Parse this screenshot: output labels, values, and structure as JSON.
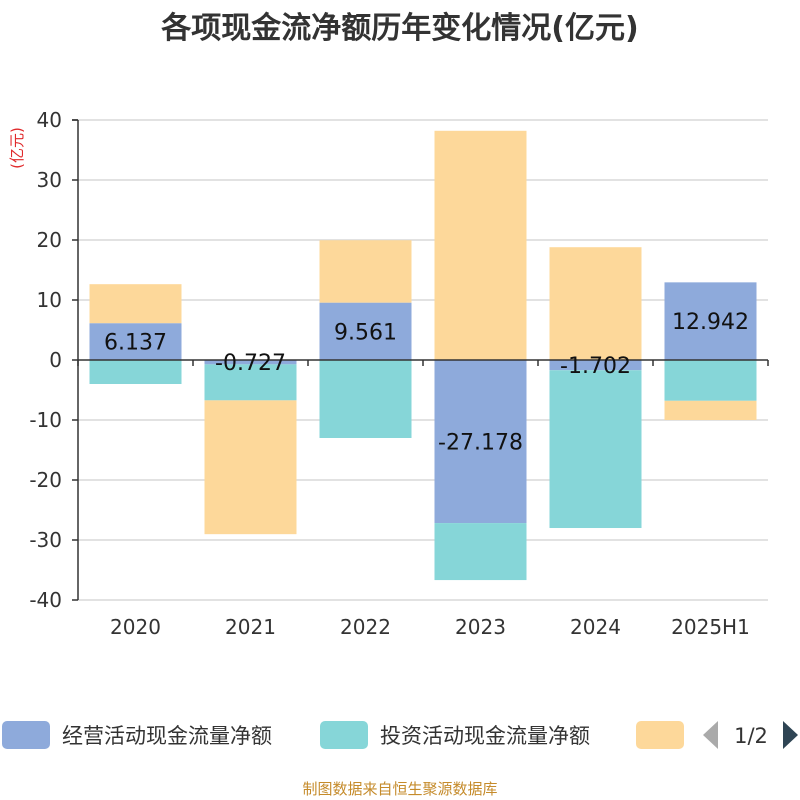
{
  "chart_data": {
    "type": "bar",
    "stacked": true,
    "title": "各项现金流净额历年变化情况(亿元)",
    "unit_label": "(亿元)",
    "categories": [
      "2020",
      "2021",
      "2022",
      "2023",
      "2024",
      "2025H1"
    ],
    "y_ticks": [
      "40",
      "30",
      "20",
      "10",
      "0",
      "-10",
      "-20",
      "-30",
      "-40"
    ],
    "ylim": [
      -40,
      40
    ],
    "grid": true,
    "legend_position": "bottom",
    "series": [
      {
        "name": "经营活动现金流量净额",
        "color": "#8eaadb",
        "values": [
          6.137,
          -0.727,
          9.561,
          -27.178,
          -1.702,
          12.942
        ],
        "labels": [
          "6.137",
          "-0.727",
          "9.561",
          "-27.178",
          "-1.702",
          "12.942"
        ]
      },
      {
        "name": "投资活动现金流量净额",
        "color": "#86d6d8",
        "values": [
          -4.0,
          -6.0,
          -13.0,
          -9.5,
          -26.3,
          -6.8
        ]
      },
      {
        "name": "",
        "color": "#fdd89a",
        "values": [
          6.5,
          -22.3,
          10.4,
          38.2,
          18.8,
          -3.2
        ]
      }
    ]
  },
  "legend": {
    "page": "1/2"
  },
  "source": "制图数据来自恒生聚源数据库"
}
